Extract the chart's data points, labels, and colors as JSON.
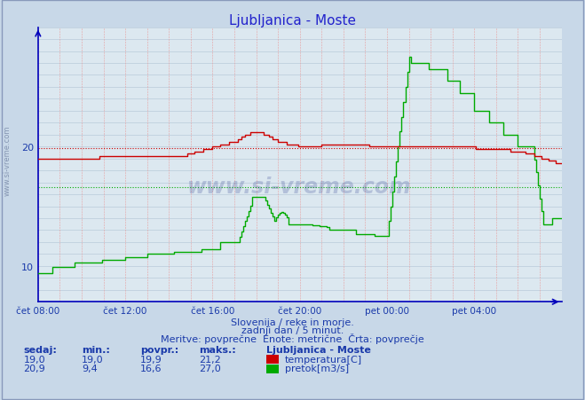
{
  "title": "Ljubljanica - Moste",
  "title_color": "#2222cc",
  "bg_color": "#c8d8e8",
  "plot_bg_color": "#dce8f0",
  "grid_color_h": "#b0c4d4",
  "grid_color_v": "#e8a0a0",
  "axis_color": "#0000bb",
  "text_color": "#1a3aaa",
  "watermark_text": "www.si-vreme.com",
  "watermark_color": "#223388",
  "subtitle_lines": [
    "Slovenija / reke in morje.",
    "zadnji dan / 5 minut.",
    "Meritve: povprečne  Enote: metrične  Črta: povprečje"
  ],
  "legend_title": "Ljubljanica - Moste",
  "legend_items": [
    {
      "label": "temperatura[C]",
      "color": "#cc0000"
    },
    {
      "label": "pretok[m3/s]",
      "color": "#00aa00"
    }
  ],
  "table_headers": [
    "sedaj:",
    "min.:",
    "povpr.:",
    "maks.:"
  ],
  "rows_data": [
    [
      "19,0",
      "19,0",
      "19,9",
      "21,2"
    ],
    [
      "20,9",
      "9,4",
      "16,6",
      "27,0"
    ]
  ],
  "xmin": 0,
  "xmax": 288,
  "ymin": 7,
  "ymax": 30,
  "yticks": [
    10,
    20
  ],
  "xtick_positions": [
    0,
    48,
    96,
    144,
    192,
    240
  ],
  "xtick_labels": [
    "čet 08:00",
    "čet 12:00",
    "čet 16:00",
    "čet 20:00",
    "pet 00:00",
    "pet 04:00"
  ],
  "temp_avg": 19.9,
  "flow_avg": 16.6,
  "temp_color": "#cc0000",
  "flow_color": "#00aa00"
}
